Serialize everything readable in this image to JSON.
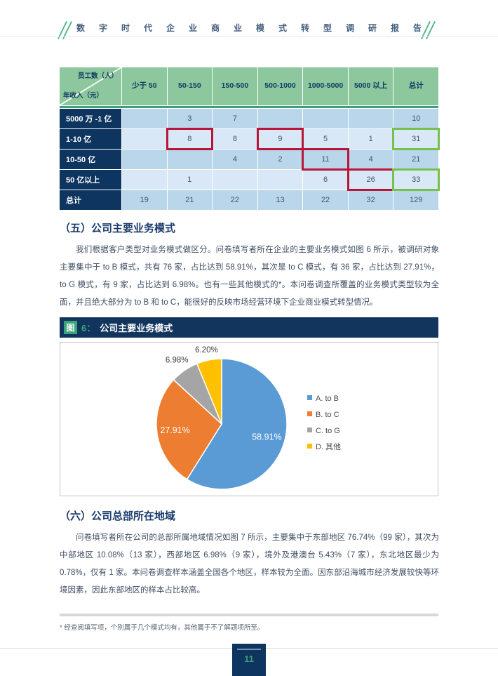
{
  "header": {
    "title": "数字时代企业商业模式转型调研报告"
  },
  "table": {
    "corner": {
      "top_right": "员工数（人）",
      "bottom_left": "年收入（元）"
    },
    "columns": [
      "少于 50",
      "50-150",
      "150-500",
      "500-1000",
      "1000-5000",
      "5000 以上",
      "总计"
    ],
    "rows": [
      {
        "label": "5000 万 -1 亿",
        "values": [
          "",
          "3",
          "7",
          "",
          "",
          "",
          "10"
        ]
      },
      {
        "label": "1-10 亿",
        "values": [
          "",
          "8",
          "8",
          "9",
          "5",
          "1",
          "31"
        ]
      },
      {
        "label": "10-50 亿",
        "values": [
          "",
          "",
          "4",
          "2",
          "11",
          "4",
          "21"
        ]
      },
      {
        "label": "50 亿以上",
        "values": [
          "",
          "1",
          "",
          "",
          "6",
          "26",
          "33"
        ]
      },
      {
        "label": "总计",
        "values": [
          "19",
          "21",
          "22",
          "13",
          "22",
          "32",
          "129"
        ]
      }
    ],
    "annotations": {
      "red_cells": [
        [
          1,
          1
        ],
        [
          1,
          3
        ],
        [
          2,
          4
        ],
        [
          3,
          5
        ]
      ],
      "green_cells": [
        [
          1,
          6
        ],
        [
          3,
          6
        ]
      ]
    }
  },
  "sections": {
    "five": {
      "heading": "（五）公司主要业务模式",
      "paragraph": "我们根据客户类型对业务模式做区分。问卷填写者所在企业的主要业务模式如图 6 所示，被调研对象主要集中于 to B 模式，共有 76 家，占比达到 58.91%，其次是 to C 模式，有 36 家，占比达到 27.91%，to G 模式，有 9 家，占比达到 6.98%。也有一些其他模式的*。本问卷调查所覆盖的业务模式类型较为全面，并且绝大部分为 to B 和 to C，能很好的反映市场经营环境下企业商业模式转型情况。"
    },
    "six": {
      "heading": "（六）公司总部所在地域",
      "paragraph": "问卷填写者所在公司的总部所属地域情况如图 7 所示，主要集中于东部地区 76.74%（99 家），其次为中部地区 10.08%（13 家），西部地区 6.98%（9 家），境外及港澳台 5.43%（7 家），东北地区最少为 0.78%，仅有 1 家。本问卷调查样本涵盖全国各个地区，样本较为全面。因东部沿海城市经济发展较快等环境因素，因此东部地区的样本占比较高。"
    }
  },
  "figure": {
    "tag": "图",
    "number": "6：",
    "title": "公司主要业务模式"
  },
  "chart_data": {
    "type": "pie",
    "title": "图 6：公司主要业务模式",
    "start_angle_deg": 0,
    "direction": "clockwise",
    "legend_position": "right",
    "slices": [
      {
        "label": "A. to B",
        "value": 58.91,
        "display": "58.91%",
        "color": "#5b9bd5"
      },
      {
        "label": "B. to C",
        "value": 27.91,
        "display": "27.91%",
        "color": "#ed7d31"
      },
      {
        "label": "C. to G",
        "value": 6.98,
        "display": "6.98%",
        "color": "#a5a5a5"
      },
      {
        "label": "D. 其他",
        "value": 6.2,
        "display": "6.20%",
        "color": "#ffc000"
      }
    ]
  },
  "footnote": "* 经查阅填写项，个别属于几个模式均有，其他属于不了解题项所至。",
  "footer": {
    "page_number": "11"
  },
  "colors": {
    "navy": "#0d3560",
    "table_header_green": "#8cc79d",
    "band_green": "#3f9f78",
    "row_blue_dark": "#bad6eb",
    "row_blue_light": "#d9e8f6",
    "annotation_red": "#b91539",
    "annotation_green": "#76c14c",
    "accent_green": "#3aa578",
    "page_number_green": "#3e9d7b"
  }
}
